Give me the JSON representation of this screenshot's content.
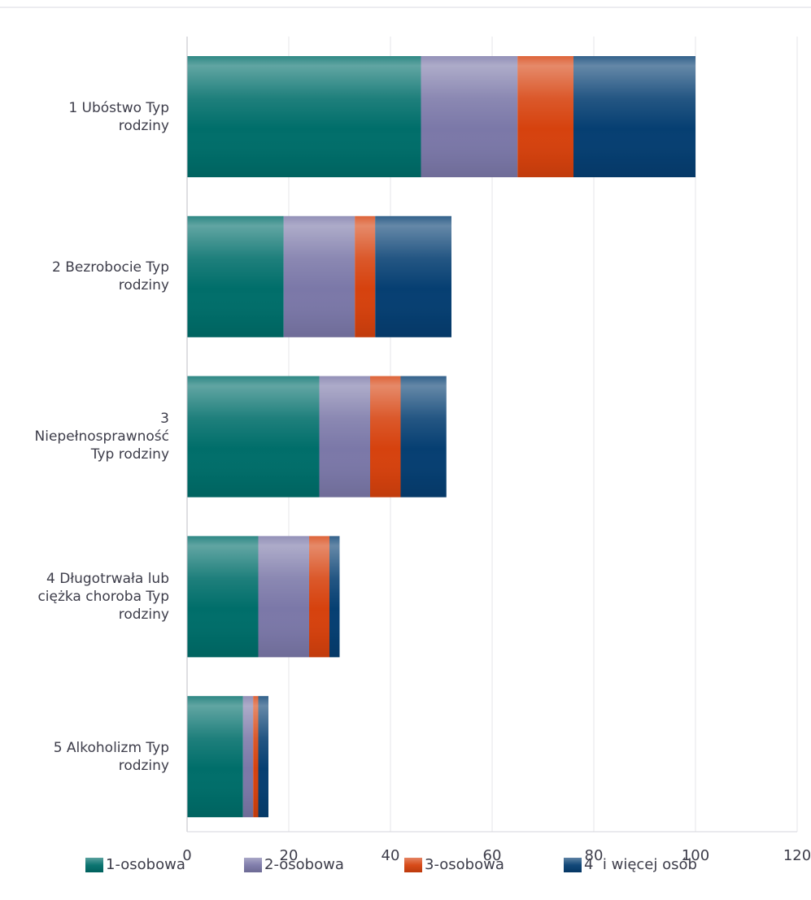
{
  "chart_data": {
    "type": "bar",
    "orientation": "horizontal",
    "stacked": true,
    "categories": [
      "1 Ubóstwo Typ rodziny",
      "2 Bezrobocie Typ rodziny",
      "3 Niepełnosprawność Typ rodziny",
      "4 Długotrwała lub ciężka choroba Typ rodziny",
      "5 Alkoholizm Typ rodziny"
    ],
    "category_lines": [
      [
        "1 Ubóstwo Typ",
        "rodziny"
      ],
      [
        "2 Bezrobocie Typ",
        "rodziny"
      ],
      [
        "3",
        "Niepełnosprawność",
        "Typ rodziny"
      ],
      [
        "4 Długotrwała lub",
        "ciężka choroba Typ",
        "rodziny"
      ],
      [
        "5 Alkoholizm Typ",
        "rodziny"
      ]
    ],
    "series": [
      {
        "name": "1-osobowa",
        "color": "#006e6a",
        "values": [
          46,
          19,
          26,
          14,
          11
        ]
      },
      {
        "name": "2-osobowa",
        "color": "#7b78a8",
        "values": [
          19,
          14,
          10,
          10,
          2
        ]
      },
      {
        "name": "3-osobowa",
        "color": "#d6420e",
        "values": [
          11,
          4,
          6,
          4,
          1
        ]
      },
      {
        "name": "4  i więcej osób",
        "color": "#063f72",
        "values": [
          24,
          15,
          9,
          2,
          2
        ]
      }
    ],
    "xlim": [
      0,
      120
    ],
    "xticks": [
      "0",
      "20",
      "40",
      "60",
      "80",
      "100",
      "120"
    ],
    "grid": true,
    "legend": "bottom",
    "title": "",
    "xlabel": "",
    "ylabel": ""
  }
}
